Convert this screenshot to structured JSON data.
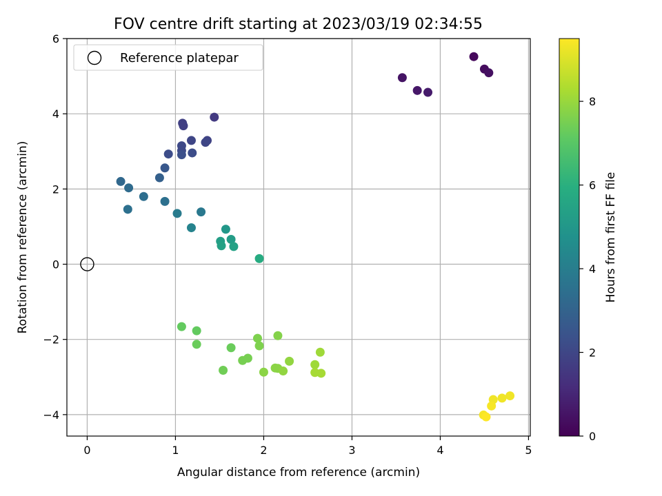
{
  "chart_data": {
    "type": "scatter",
    "title": "FOV centre drift starting at 2023/03/19 02:34:55",
    "xlabel": "Angular distance from reference (arcmin)",
    "ylabel": "Rotation from reference (arcmin)",
    "xlim": [
      -0.23,
      5.02
    ],
    "ylim": [
      -4.57,
      6.0
    ],
    "x_ticks": [
      0,
      1,
      2,
      3,
      4,
      5
    ],
    "x_tick_labels": [
      "0",
      "1",
      "2",
      "3",
      "4",
      "5"
    ],
    "y_ticks": [
      -4,
      -2,
      0,
      2,
      4,
      6
    ],
    "y_tick_labels": [
      "−4",
      "−2",
      "0",
      "2",
      "4",
      "6"
    ],
    "grid": true,
    "legend": {
      "placement": "top-left",
      "label": "Reference platepar"
    },
    "reference": {
      "x": 0,
      "y": 0
    },
    "colorbar": {
      "label": "Hours from first FF file",
      "colormap": "viridis",
      "range": [
        0,
        9.5
      ],
      "ticks": [
        0,
        2,
        4,
        6,
        8
      ],
      "tick_labels": [
        "0",
        "2",
        "4",
        "6",
        "8"
      ]
    },
    "points": [
      {
        "x": 4.38,
        "y": 5.52,
        "hours": 0.2
      },
      {
        "x": 4.5,
        "y": 5.19,
        "hours": 0.3
      },
      {
        "x": 4.55,
        "y": 5.09,
        "hours": 0.4
      },
      {
        "x": 3.57,
        "y": 4.96,
        "hours": 0.5
      },
      {
        "x": 3.74,
        "y": 4.62,
        "hours": 0.6
      },
      {
        "x": 3.86,
        "y": 4.57,
        "hours": 0.7
      },
      {
        "x": 1.44,
        "y": 3.91,
        "hours": 1.6
      },
      {
        "x": 1.08,
        "y": 3.75,
        "hours": 1.8
      },
      {
        "x": 1.09,
        "y": 3.68,
        "hours": 1.8
      },
      {
        "x": 1.36,
        "y": 3.29,
        "hours": 1.9
      },
      {
        "x": 1.34,
        "y": 3.24,
        "hours": 2.0
      },
      {
        "x": 1.18,
        "y": 3.29,
        "hours": 2.0
      },
      {
        "x": 1.07,
        "y": 3.15,
        "hours": 2.1
      },
      {
        "x": 1.07,
        "y": 3.02,
        "hours": 2.1
      },
      {
        "x": 1.19,
        "y": 2.96,
        "hours": 2.2
      },
      {
        "x": 0.92,
        "y": 2.93,
        "hours": 2.2
      },
      {
        "x": 1.07,
        "y": 2.91,
        "hours": 2.3
      },
      {
        "x": 0.88,
        "y": 2.56,
        "hours": 2.6
      },
      {
        "x": 0.82,
        "y": 2.3,
        "hours": 2.9
      },
      {
        "x": 0.38,
        "y": 2.2,
        "hours": 3.2
      },
      {
        "x": 0.47,
        "y": 2.03,
        "hours": 3.3
      },
      {
        "x": 0.64,
        "y": 1.8,
        "hours": 3.4
      },
      {
        "x": 0.88,
        "y": 1.67,
        "hours": 3.5
      },
      {
        "x": 0.46,
        "y": 1.46,
        "hours": 3.5
      },
      {
        "x": 1.29,
        "y": 1.39,
        "hours": 3.8
      },
      {
        "x": 1.02,
        "y": 1.35,
        "hours": 3.9
      },
      {
        "x": 1.18,
        "y": 0.97,
        "hours": 4.2
      },
      {
        "x": 1.57,
        "y": 0.93,
        "hours": 5.0
      },
      {
        "x": 1.63,
        "y": 0.66,
        "hours": 5.2
      },
      {
        "x": 1.51,
        "y": 0.61,
        "hours": 5.3
      },
      {
        "x": 1.66,
        "y": 0.47,
        "hours": 5.4
      },
      {
        "x": 1.52,
        "y": 0.49,
        "hours": 5.4
      },
      {
        "x": 1.95,
        "y": 0.15,
        "hours": 5.8
      },
      {
        "x": 1.07,
        "y": -1.66,
        "hours": 7.2
      },
      {
        "x": 1.24,
        "y": -1.77,
        "hours": 7.2
      },
      {
        "x": 1.24,
        "y": -2.13,
        "hours": 7.3
      },
      {
        "x": 1.63,
        "y": -2.22,
        "hours": 7.3
      },
      {
        "x": 1.54,
        "y": -2.82,
        "hours": 7.4
      },
      {
        "x": 1.76,
        "y": -2.56,
        "hours": 7.5
      },
      {
        "x": 1.82,
        "y": -2.5,
        "hours": 7.5
      },
      {
        "x": 1.93,
        "y": -1.97,
        "hours": 7.6
      },
      {
        "x": 1.95,
        "y": -2.17,
        "hours": 7.6
      },
      {
        "x": 2.16,
        "y": -1.9,
        "hours": 7.7
      },
      {
        "x": 2.0,
        "y": -2.87,
        "hours": 7.8
      },
      {
        "x": 2.13,
        "y": -2.76,
        "hours": 7.8
      },
      {
        "x": 2.16,
        "y": -2.77,
        "hours": 7.8
      },
      {
        "x": 2.22,
        "y": -2.84,
        "hours": 7.9
      },
      {
        "x": 2.29,
        "y": -2.58,
        "hours": 7.9
      },
      {
        "x": 2.58,
        "y": -2.67,
        "hours": 8.1
      },
      {
        "x": 2.64,
        "y": -2.34,
        "hours": 8.1
      },
      {
        "x": 2.58,
        "y": -2.88,
        "hours": 8.2
      },
      {
        "x": 2.65,
        "y": -2.9,
        "hours": 8.2
      },
      {
        "x": 4.79,
        "y": -3.5,
        "hours": 9.3
      },
      {
        "x": 4.7,
        "y": -3.56,
        "hours": 9.3
      },
      {
        "x": 4.6,
        "y": -3.6,
        "hours": 9.3
      },
      {
        "x": 4.58,
        "y": -3.77,
        "hours": 9.4
      },
      {
        "x": 4.49,
        "y": -4.01,
        "hours": 9.4
      },
      {
        "x": 4.52,
        "y": -4.06,
        "hours": 9.5
      }
    ]
  }
}
